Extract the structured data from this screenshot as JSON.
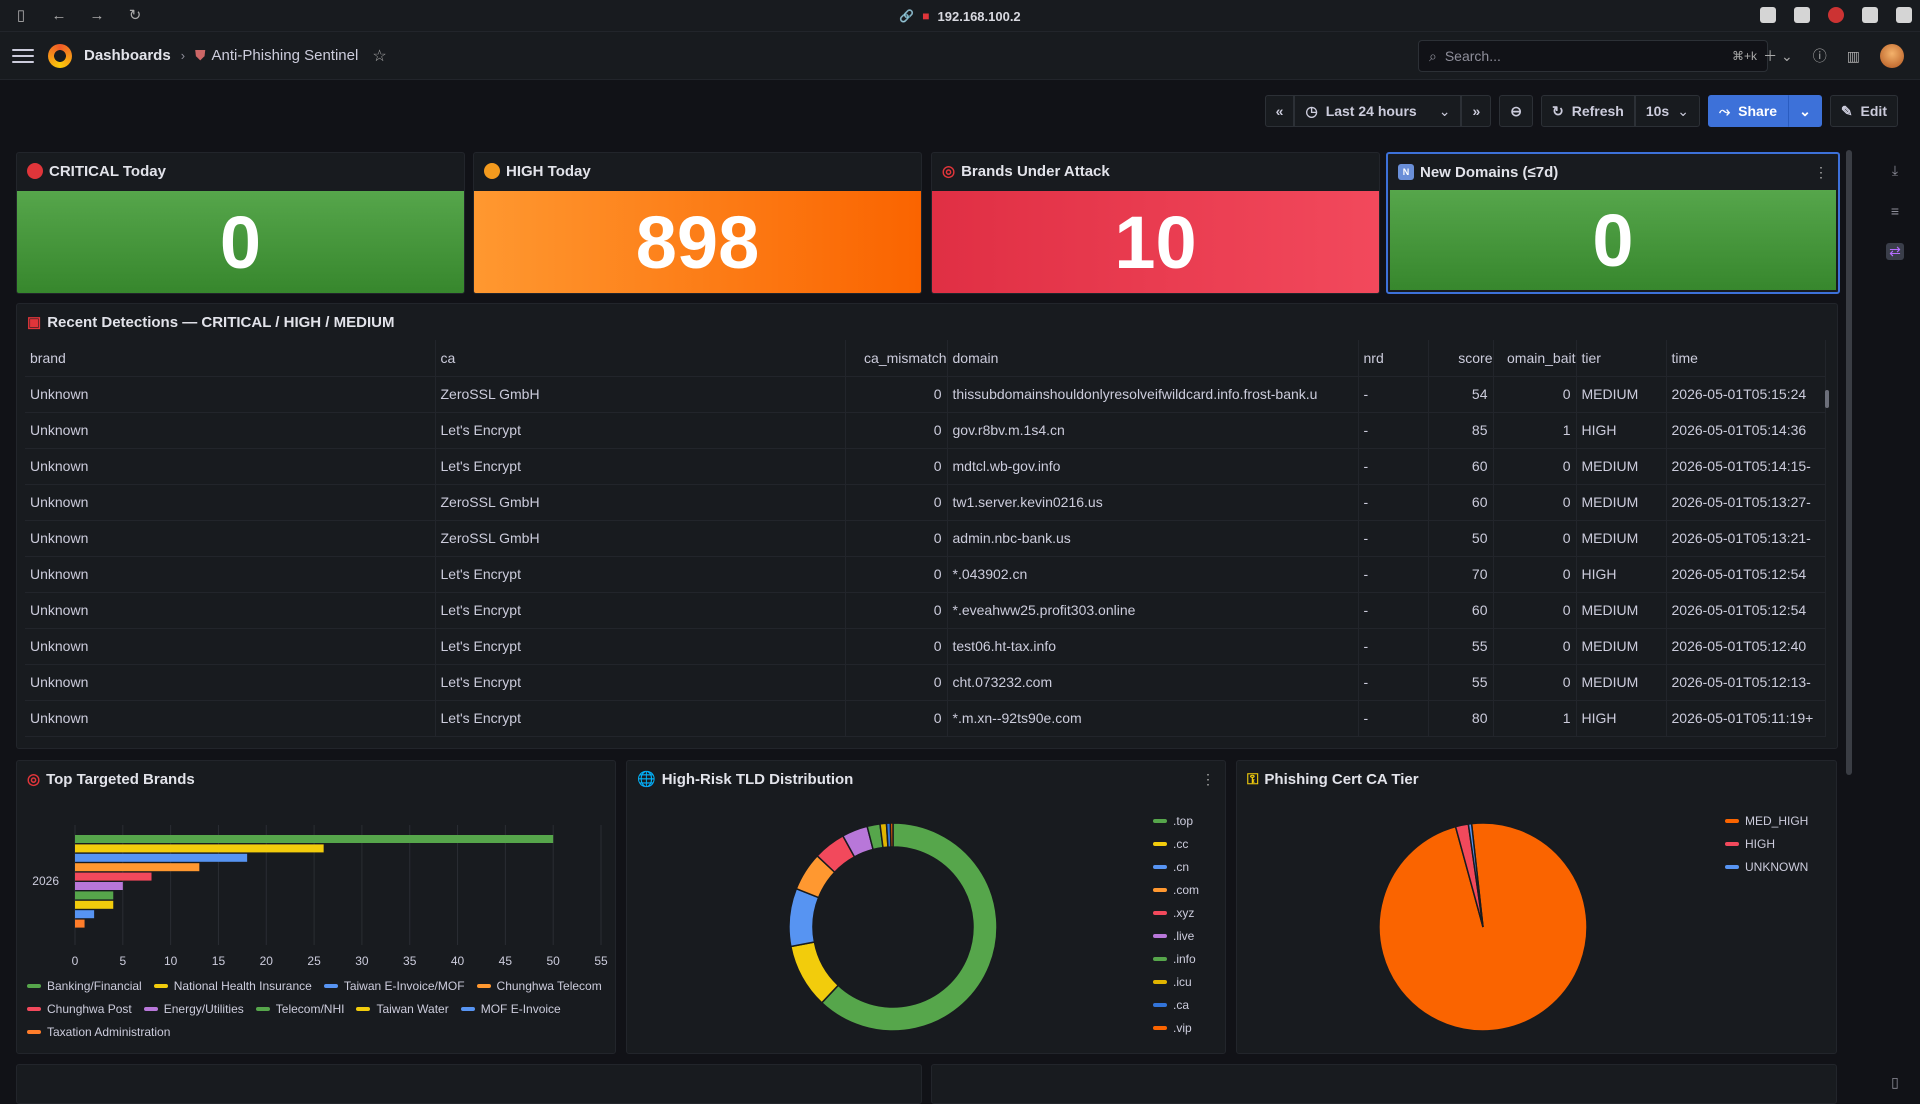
{
  "browser": {
    "url": "192.168.100.2"
  },
  "nav": {
    "crumb_root": "Dashboards",
    "crumb_sep": "›",
    "crumb_page": "Anti-Phishing Sentinel",
    "search_placeholder": "Search...",
    "search_shortcut": "⌘+k"
  },
  "toolbar": {
    "time_range": "Last 24 hours",
    "refresh_label": "Refresh",
    "refresh_interval": "10s",
    "share_label": "Share",
    "edit_label": "Edit"
  },
  "stats": [
    {
      "title": "CRITICAL Today",
      "value": "0",
      "color": "#56a64b"
    },
    {
      "title": "HIGH Today",
      "value": "898",
      "color": "#fa6400"
    },
    {
      "title": "Brands Under Attack",
      "value": "10",
      "color": "#e02f44"
    },
    {
      "title": "New Domains (≤7d)",
      "value": "0",
      "color": "#56a64b"
    }
  ],
  "detections": {
    "title": "Recent Detections — CRITICAL / HIGH / MEDIUM",
    "columns": [
      "brand",
      "ca",
      "ca_mismatch",
      "domain",
      "nrd",
      "score",
      "omain_bait",
      "tier",
      "time"
    ],
    "rows": [
      [
        "Unknown",
        "ZeroSSL GmbH",
        "0",
        "thissubdomainshouldonlyresolveifwildcard.info.frost-bank.u",
        "-",
        "54",
        "0",
        "MEDIUM",
        "2026-05-01T05:15:24"
      ],
      [
        "Unknown",
        "Let's Encrypt",
        "0",
        "gov.r8bv.m.1s4.cn",
        "-",
        "85",
        "1",
        "HIGH",
        "2026-05-01T05:14:36"
      ],
      [
        "Unknown",
        "Let's Encrypt",
        "0",
        "mdtcl.wb-gov.info",
        "-",
        "60",
        "0",
        "MEDIUM",
        "2026-05-01T05:14:15-"
      ],
      [
        "Unknown",
        "ZeroSSL GmbH",
        "0",
        "tw1.server.kevin0216.us",
        "-",
        "60",
        "0",
        "MEDIUM",
        "2026-05-01T05:13:27-"
      ],
      [
        "Unknown",
        "ZeroSSL GmbH",
        "0",
        "admin.nbc-bank.us",
        "-",
        "50",
        "0",
        "MEDIUM",
        "2026-05-01T05:13:21-"
      ],
      [
        "Unknown",
        "Let's Encrypt",
        "0",
        "*.043902.cn",
        "-",
        "70",
        "0",
        "HIGH",
        "2026-05-01T05:12:54"
      ],
      [
        "Unknown",
        "Let's Encrypt",
        "0",
        "*.eveahww25.profit303.online",
        "-",
        "60",
        "0",
        "MEDIUM",
        "2026-05-01T05:12:54"
      ],
      [
        "Unknown",
        "Let's Encrypt",
        "0",
        "test06.ht-tax.info",
        "-",
        "55",
        "0",
        "MEDIUM",
        "2026-05-01T05:12:40"
      ],
      [
        "Unknown",
        "Let's Encrypt",
        "0",
        "cht.073232.com",
        "-",
        "55",
        "0",
        "MEDIUM",
        "2026-05-01T05:12:13-"
      ],
      [
        "Unknown",
        "Let's Encrypt",
        "0",
        "*.m.xn--92ts90e.com",
        "-",
        "80",
        "1",
        "HIGH",
        "2026-05-01T05:11:19+"
      ]
    ]
  },
  "panels": {
    "brands_title": "Top Targeted Brands",
    "tld_title": "High-Risk TLD Distribution",
    "ca_title": "Phishing Cert CA Tier"
  },
  "chart_data": [
    {
      "type": "bar",
      "orientation": "horizontal",
      "title": "Top Targeted Brands",
      "categories": [
        "2026"
      ],
      "xlim": [
        0,
        55
      ],
      "x_ticks": [
        "0",
        "5",
        "10",
        "15",
        "20",
        "25",
        "30",
        "35",
        "40",
        "45",
        "50",
        "55"
      ],
      "legend_position": "bottom",
      "series": [
        {
          "name": "Banking/Financial",
          "values": [
            50
          ],
          "color": "#56a64b"
        },
        {
          "name": "National Health Insurance",
          "values": [
            26
          ],
          "color": "#f2cc0c"
        },
        {
          "name": "Taiwan E-Invoice/MOF",
          "values": [
            18
          ],
          "color": "#5794f2"
        },
        {
          "name": "Chunghwa Telecom",
          "values": [
            13
          ],
          "color": "#ff9830"
        },
        {
          "name": "Chunghwa Post",
          "values": [
            8
          ],
          "color": "#f2495c"
        },
        {
          "name": "Energy/Utilities",
          "values": [
            5
          ],
          "color": "#b877d9"
        },
        {
          "name": "Telecom/NHI",
          "values": [
            4
          ],
          "color": "#56a64b"
        },
        {
          "name": "Taiwan Water",
          "values": [
            4
          ],
          "color": "#f2cc0c"
        },
        {
          "name": "MOF E-Invoice",
          "values": [
            2
          ],
          "color": "#5794f2"
        },
        {
          "name": "Taxation Administration",
          "values": [
            1
          ],
          "color": "#ff7d2a"
        }
      ]
    },
    {
      "type": "pie",
      "variant": "donut",
      "title": "High-Risk TLD Distribution",
      "legend_position": "right",
      "labels": [
        ".top",
        ".cc",
        ".cn",
        ".com",
        ".xyz",
        ".live",
        ".info",
        ".icu",
        ".ca",
        ".vip"
      ],
      "values": [
        62,
        10,
        9,
        6,
        5,
        4,
        2,
        1,
        0.6,
        0.4
      ],
      "colors": [
        "#56a64b",
        "#f2cc0c",
        "#5794f2",
        "#ff9830",
        "#f2495c",
        "#b877d9",
        "#56a64b",
        "#e0b400",
        "#3274d9",
        "#fa6400"
      ]
    },
    {
      "type": "pie",
      "title": "Phishing Cert CA Tier",
      "legend_position": "right",
      "labels": [
        "MED_HIGH",
        "HIGH",
        "UNKNOWN"
      ],
      "values": [
        97.5,
        2,
        0.5
      ],
      "colors": [
        "#fa6400",
        "#f2495c",
        "#5794f2"
      ]
    }
  ]
}
